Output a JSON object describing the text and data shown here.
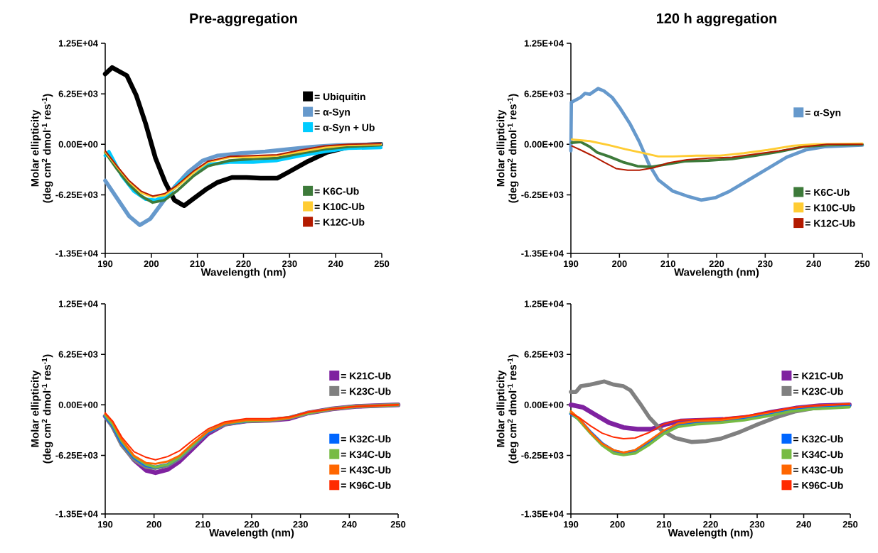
{
  "chart_data": [
    {
      "type": "line",
      "title": "Pre-aggregation",
      "xlabel": "Wavelength (nm)",
      "ylabel": "Molar ellipticity\n(deg cm$^{2}$ dmol$^{-1}$ res$^{-1}$)",
      "xlim": [
        190,
        250
      ],
      "ylim": [
        -13500,
        12500
      ],
      "xticks": [
        190,
        200,
        210,
        220,
        230,
        240,
        250
      ],
      "yticks": [
        {
          "value": -13500,
          "label": "-1.35E+04"
        },
        {
          "value": -6250,
          "label": "-6.25E+03"
        },
        {
          "value": 0,
          "label": "0.00E+00"
        },
        {
          "value": 6250,
          "label": "6.25E+03"
        },
        {
          "value": 12500,
          "label": "1.25E+04"
        }
      ],
      "legend": "right",
      "series": [
        {
          "name": "= Ubiquitin",
          "color": "#000000",
          "x": [
            190,
            191.5,
            194.7,
            196.7,
            198.8,
            200.9,
            203,
            205,
            207.1,
            209.2,
            211.8,
            214.4,
            217.5,
            220.6,
            223.7,
            227.3,
            229.9,
            234,
            238.1,
            242.3,
            245.9,
            249.8
          ],
          "values": [
            8700,
            9500,
            8500,
            6100,
            2500,
            -1700,
            -4700,
            -6900,
            -7600,
            -6700,
            -5600,
            -4700,
            -4100,
            -4100,
            -4200,
            -4200,
            -3400,
            -2100,
            -1000,
            -400,
            -100,
            0
          ]
        },
        {
          "name": "= α-Syn",
          "color": "#6699cc",
          "x": [
            190,
            192.6,
            195.2,
            197.5,
            199.8,
            202.4,
            205,
            208.1,
            211.2,
            214.4,
            219.5,
            224.7,
            229.9,
            235,
            240.3,
            249.8
          ],
          "values": [
            -4500,
            -6700,
            -8900,
            -10000,
            -9200,
            -7200,
            -5300,
            -3400,
            -2000,
            -1400,
            -1100,
            -900,
            -600,
            -300,
            -100,
            0
          ]
        },
        {
          "name": "= α-Syn + Ub",
          "color": "#00ccff",
          "x": [
            190,
            190.8,
            193.6,
            196.2,
            198.8,
            200.9,
            203.5,
            206.1,
            209.2,
            212.3,
            217,
            222.1,
            227.3,
            232.5,
            237.7,
            242.8,
            249.8
          ],
          "values": [
            -1400,
            -900,
            -3900,
            -5800,
            -6800,
            -6900,
            -6300,
            -4700,
            -3400,
            -2500,
            -2200,
            -2200,
            -2000,
            -1400,
            -900,
            -500,
            -400
          ]
        },
        {
          "name": "= K6C-Ub",
          "color": "#3d7a3a",
          "x": [
            190,
            192.6,
            195.2,
            197.8,
            200.3,
            202.9,
            205.5,
            209.2,
            212.3,
            217,
            222.1,
            227.3,
            232.5,
            237.7,
            242.8,
            249.8
          ],
          "values": [
            -1000,
            -3100,
            -5000,
            -6400,
            -7200,
            -6900,
            -5800,
            -3900,
            -2700,
            -2000,
            -1800,
            -1700,
            -1100,
            -600,
            -300,
            -100
          ]
        },
        {
          "name": "= K10C-Ub",
          "color": "#ffcc33",
          "x": [
            190,
            192.6,
            195.2,
            197.8,
            200.3,
            202.9,
            205.5,
            209.2,
            212.3,
            217,
            222.1,
            227.3,
            232.5,
            237.7,
            242.8,
            249.8
          ],
          "values": [
            -900,
            -2800,
            -4600,
            -6000,
            -6500,
            -6300,
            -5300,
            -3500,
            -2200,
            -1600,
            -1600,
            -1400,
            -900,
            -400,
            -100,
            0
          ]
        },
        {
          "name": "= K12C-Ub",
          "color": "#b31a00",
          "x": [
            190,
            192.6,
            195.2,
            197.8,
            200.3,
            202.9,
            205.5,
            209.2,
            212.3,
            217,
            222.1,
            227.3,
            232.5,
            237.7,
            242.8,
            249.8
          ],
          "values": [
            -800,
            -2700,
            -4500,
            -5800,
            -6400,
            -6100,
            -5100,
            -3300,
            -2100,
            -1500,
            -1400,
            -1300,
            -700,
            -200,
            0,
            100
          ]
        }
      ]
    },
    {
      "type": "line",
      "title": "120 h aggregation",
      "xlabel": "Wavelength (nm)",
      "ylabel": "Molar ellipticity\n(deg cm$^{2}$ dmol$^{-1}$ res$^{-1}$)",
      "xlim": [
        190,
        250
      ],
      "ylim": [
        -13500,
        12500
      ],
      "xticks": [
        190,
        200,
        210,
        220,
        230,
        240,
        250
      ],
      "yticks": [
        {
          "value": -13500,
          "label": "-1.35E+04"
        },
        {
          "value": -6250,
          "label": "-6.25E+03"
        },
        {
          "value": 0,
          "label": "0.00E+00"
        },
        {
          "value": 6250,
          "label": "6.25E+03"
        },
        {
          "value": 12500,
          "label": "1.25E+04"
        }
      ],
      "legend": "right",
      "series": [
        {
          "name": "= α-Syn",
          "color": "#6699cc",
          "x": [
            190,
            190.1,
            192,
            192.9,
            193.9,
            195.6,
            196.8,
            198.5,
            200.2,
            202.2,
            204.1,
            206.1,
            208,
            211,
            213.9,
            216.8,
            219.8,
            222.7,
            226.6,
            230.5,
            234.4,
            238.3,
            242.2,
            250
          ],
          "values": [
            -800,
            5200,
            5800,
            6300,
            6200,
            6900,
            6600,
            5800,
            4400,
            2500,
            300,
            -2500,
            -4400,
            -5800,
            -6400,
            -6900,
            -6600,
            -5800,
            -4400,
            -3000,
            -1600,
            -700,
            -300,
            -100
          ]
        },
        {
          "name": "= K6C-Ub",
          "color": "#3d7a3a",
          "x": [
            190.2,
            192,
            193.9,
            195.4,
            197.8,
            200.7,
            203.7,
            206.6,
            209.5,
            213.4,
            218.3,
            223.2,
            228,
            232.9,
            237.8,
            242.7,
            250
          ],
          "values": [
            200,
            300,
            -300,
            -1000,
            -1500,
            -2200,
            -2700,
            -2800,
            -2500,
            -2100,
            -2000,
            -1800,
            -1400,
            -900,
            -300,
            -100,
            0
          ]
        },
        {
          "name": "= K10C-Ub",
          "color": "#ffcc33",
          "x": [
            190.2,
            193.9,
            197.8,
            201.2,
            205.1,
            208,
            211,
            215.9,
            220.7,
            225.6,
            230.5,
            235.4,
            240.2,
            250
          ],
          "values": [
            600,
            400,
            -100,
            -600,
            -1100,
            -1500,
            -1500,
            -1400,
            -1400,
            -1100,
            -700,
            -200,
            0,
            100
          ]
        },
        {
          "name": "= K12C-Ub",
          "color": "#b31a00",
          "x": [
            190.2,
            192,
            194.4,
            196.8,
            199.3,
            201.7,
            204.1,
            207.1,
            210,
            213.9,
            218.3,
            223.2,
            228,
            232.9,
            237.8,
            242.7,
            250
          ],
          "values": [
            -200,
            -700,
            -1400,
            -2200,
            -3000,
            -3200,
            -3200,
            -2900,
            -2300,
            -1900,
            -1700,
            -1600,
            -1200,
            -800,
            -300,
            0,
            0
          ]
        }
      ]
    },
    {
      "type": "line",
      "xlabel": "Wavelength (nm)",
      "ylabel": "Molar ellipticity\n(deg cm$^{2}$ dmol$^{-1}$ res$^{-1}$)",
      "xlim": [
        190,
        250
      ],
      "ylim": [
        -13500,
        12500
      ],
      "xticks": [
        190,
        200,
        210,
        220,
        230,
        240,
        250
      ],
      "yticks": [
        {
          "value": -13500,
          "label": "-1.35E+04"
        },
        {
          "value": -6250,
          "label": "-6.25E+03"
        },
        {
          "value": 0,
          "label": "0.00E+00"
        },
        {
          "value": 6250,
          "label": "6.25E+03"
        },
        {
          "value": 12500,
          "label": "1.25E+04"
        }
      ],
      "legend": "right",
      "x": [
        190,
        191.5,
        193.4,
        195.9,
        198.4,
        200.3,
        202.8,
        205.2,
        208.1,
        211,
        214.5,
        218.9,
        223.8,
        227.7,
        231.6,
        236.5,
        241.4,
        250
      ],
      "series": [
        {
          "name": "= K21C-Ub",
          "color": "#7f22a0",
          "values": [
            -1400,
            -2600,
            -4800,
            -6800,
            -8100,
            -8400,
            -8000,
            -7000,
            -5300,
            -3600,
            -2400,
            -2000,
            -1900,
            -1700,
            -1000,
            -500,
            -200,
            0
          ]
        },
        {
          "name": "= K23C-Ub",
          "color": "#808080",
          "values": [
            -1400,
            -2700,
            -5000,
            -6800,
            -7700,
            -7800,
            -7500,
            -6600,
            -5000,
            -3400,
            -2400,
            -2000,
            -1900,
            -1600,
            -1000,
            -500,
            -200,
            0
          ]
        },
        {
          "name": "= K32C-Ub",
          "color": "#0066ff",
          "values": [
            -1400,
            -2500,
            -4700,
            -6500,
            -7500,
            -7700,
            -7400,
            -6500,
            -4900,
            -3400,
            -2300,
            -2000,
            null,
            null,
            null,
            null,
            null,
            null
          ]
        },
        {
          "name": "= K34C-Ub",
          "color": "#77bb44",
          "values": [
            -1300,
            -2400,
            -4500,
            -6400,
            -7400,
            -7700,
            -7400,
            -6500,
            -4900,
            -3300,
            -2300,
            -2000,
            -1900,
            -1600,
            -1000,
            -500,
            -200,
            0
          ]
        },
        {
          "name": "= K43C-Ub",
          "color": "#ff6600",
          "values": [
            -1100,
            -2100,
            -4300,
            -6300,
            -7200,
            -7300,
            -7000,
            -6300,
            -4700,
            -3300,
            -2300,
            -1900,
            -1900,
            -1600,
            -900,
            -500,
            -200,
            0
          ]
        },
        {
          "name": "= K96C-Ub",
          "color": "#ff2a00",
          "values": [
            -1000,
            -2000,
            -4000,
            -5800,
            -6500,
            -6800,
            -6400,
            -5700,
            -4300,
            -3000,
            -2100,
            -1700,
            -1700,
            -1500,
            -900,
            -500,
            -200,
            0
          ]
        }
      ]
    },
    {
      "type": "line",
      "xlabel": "Wavelength (nm)",
      "ylabel": "Molar ellipticity\n(deg cm$^{2}$ dmol$^{-1}$ res$^{-1}$)",
      "xlim": [
        190,
        250
      ],
      "ylim": [
        -13500,
        12500
      ],
      "xticks": [
        190,
        200,
        210,
        220,
        230,
        240,
        250
      ],
      "yticks": [
        {
          "value": -13500,
          "label": "-1.35E+04"
        },
        {
          "value": -6250,
          "label": "-6.25E+03"
        },
        {
          "value": 0,
          "label": "0.00E+00"
        },
        {
          "value": 6250,
          "label": "6.25E+03"
        },
        {
          "value": 12500,
          "label": "1.25E+04"
        }
      ],
      "legend": "right",
      "x": [
        190,
        191.6,
        194.2,
        196.7,
        199.2,
        201.3,
        203.8,
        206.9,
        209.9,
        213,
        217,
        222.1,
        227.2,
        232.2,
        237.3,
        242.4,
        249.8
      ],
      "series": [
        {
          "name": "= K21C-Ub",
          "color": "#7f22a0",
          "x": [
            190,
            192.6,
            195.2,
            198.2,
            201.3,
            204.3,
            207.4,
            210.4,
            213.5,
            218,
            223.1,
            228.2,
            233.2,
            238.3,
            243.4,
            249.8
          ],
          "values": [
            0,
            -300,
            -1200,
            -2200,
            -2800,
            -3000,
            -3000,
            -2400,
            -2000,
            -1900,
            -1800,
            -1500,
            -900,
            -400,
            -100,
            0
          ]
        },
        {
          "name": "= K23C-Ub",
          "color": "#808080",
          "x": [
            190,
            191.1,
            192.1,
            194.2,
            197.2,
            199.2,
            201.3,
            202.8,
            204.8,
            206.9,
            209.4,
            212.4,
            216,
            219,
            222.1,
            226.1,
            230.2,
            234.3,
            238.3,
            242.4,
            249.8
          ],
          "values": [
            1600,
            1600,
            2300,
            2500,
            2900,
            2500,
            2300,
            1800,
            200,
            -1600,
            -3100,
            -4100,
            -4600,
            -4500,
            -4200,
            -3400,
            -2400,
            -1500,
            -800,
            -400,
            -100
          ]
        },
        {
          "name": "= K32C-Ub",
          "color": "#0066ff",
          "values": [
            -1100,
            -1700,
            -3400,
            -4800,
            -5700,
            -6000,
            -5700,
            -4600,
            -3400,
            -2600,
            -2200,
            -2100,
            -1700,
            -1200,
            -600,
            -300,
            -100
          ]
        },
        {
          "name": "= K34C-Ub",
          "color": "#77bb44",
          "values": [
            -1000,
            -1800,
            -3500,
            -5000,
            -6000,
            -6200,
            -6000,
            -4900,
            -3600,
            -2700,
            -2400,
            -2200,
            -1900,
            -1400,
            -800,
            -500,
            -300
          ]
        },
        {
          "name": "= K43C-Ub",
          "color": "#ff6600",
          "values": [
            -800,
            -1600,
            -3400,
            -4800,
            -5600,
            -5900,
            -5600,
            -4400,
            -3200,
            -2300,
            -2000,
            -1900,
            -1500,
            -1000,
            -400,
            -100,
            100
          ]
        },
        {
          "name": "= K96C-Ub",
          "color": "#ff2a00",
          "values": [
            -1100,
            -1500,
            -2600,
            -3500,
            -4000,
            -4200,
            -4100,
            -3400,
            -2400,
            -1900,
            -1800,
            -1700,
            -1400,
            -900,
            -400,
            -100,
            100
          ]
        }
      ]
    }
  ]
}
